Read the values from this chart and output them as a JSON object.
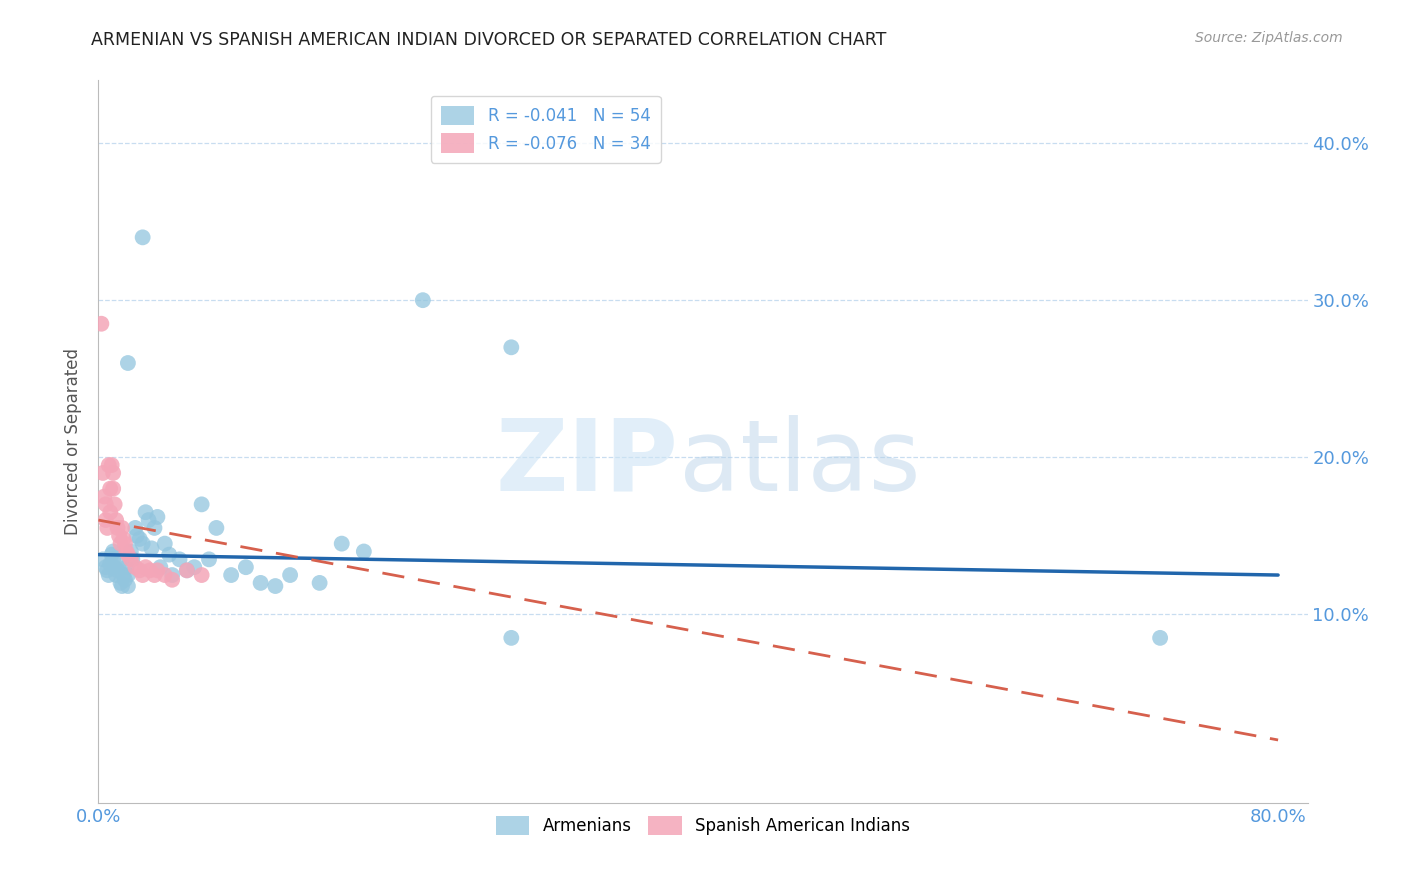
{
  "title": "ARMENIAN VS SPANISH AMERICAN INDIAN DIVORCED OR SEPARATED CORRELATION CHART",
  "source": "Source: ZipAtlas.com",
  "ylabel": "Divorced or Separated",
  "xlim": [
    0.0,
    0.82
  ],
  "ylim": [
    -0.02,
    0.44
  ],
  "blue_color": "#92c5de",
  "pink_color": "#f4a6b8",
  "line_blue": "#2166ac",
  "line_pink": "#d6604d",
  "title_color": "#222222",
  "axis_label_color": "#555555",
  "tick_color": "#5599dd",
  "grid_color": "#c8ddf0",
  "armenians_x": [
    0.003,
    0.005,
    0.006,
    0.007,
    0.008,
    0.009,
    0.01,
    0.01,
    0.011,
    0.012,
    0.013,
    0.014,
    0.015,
    0.016,
    0.017,
    0.018,
    0.019,
    0.02,
    0.02,
    0.022,
    0.023,
    0.025,
    0.026,
    0.028,
    0.03,
    0.032,
    0.034,
    0.036,
    0.038,
    0.04,
    0.042,
    0.045,
    0.048,
    0.05,
    0.055,
    0.06,
    0.065,
    0.07,
    0.075,
    0.08,
    0.09,
    0.1,
    0.11,
    0.12,
    0.13,
    0.15,
    0.165,
    0.18,
    0.22,
    0.28,
    0.02,
    0.03,
    0.28,
    0.72
  ],
  "armenians_y": [
    0.135,
    0.13,
    0.128,
    0.125,
    0.132,
    0.138,
    0.14,
    0.135,
    0.13,
    0.125,
    0.128,
    0.132,
    0.12,
    0.118,
    0.125,
    0.122,
    0.13,
    0.125,
    0.118,
    0.14,
    0.135,
    0.155,
    0.15,
    0.148,
    0.145,
    0.165,
    0.16,
    0.142,
    0.155,
    0.162,
    0.13,
    0.145,
    0.138,
    0.125,
    0.135,
    0.128,
    0.13,
    0.17,
    0.135,
    0.155,
    0.125,
    0.13,
    0.12,
    0.118,
    0.125,
    0.12,
    0.145,
    0.14,
    0.3,
    0.27,
    0.26,
    0.34,
    0.085,
    0.085
  ],
  "spanish_x": [
    0.002,
    0.003,
    0.004,
    0.005,
    0.005,
    0.006,
    0.007,
    0.008,
    0.008,
    0.009,
    0.01,
    0.01,
    0.011,
    0.012,
    0.013,
    0.014,
    0.015,
    0.016,
    0.017,
    0.018,
    0.019,
    0.02,
    0.022,
    0.025,
    0.028,
    0.03,
    0.032,
    0.035,
    0.038,
    0.04,
    0.045,
    0.05,
    0.06,
    0.07
  ],
  "spanish_y": [
    0.285,
    0.19,
    0.175,
    0.17,
    0.16,
    0.155,
    0.195,
    0.18,
    0.165,
    0.195,
    0.19,
    0.18,
    0.17,
    0.16,
    0.155,
    0.15,
    0.145,
    0.155,
    0.148,
    0.145,
    0.14,
    0.138,
    0.135,
    0.13,
    0.128,
    0.125,
    0.13,
    0.128,
    0.125,
    0.128,
    0.125,
    0.122,
    0.128,
    0.125
  ],
  "arm_trendline_x": [
    0.0,
    0.8
  ],
  "arm_trendline_y": [
    0.138,
    0.125
  ],
  "spa_trendline_x": [
    0.0,
    0.8
  ],
  "spa_trendline_y": [
    0.16,
    0.02
  ]
}
